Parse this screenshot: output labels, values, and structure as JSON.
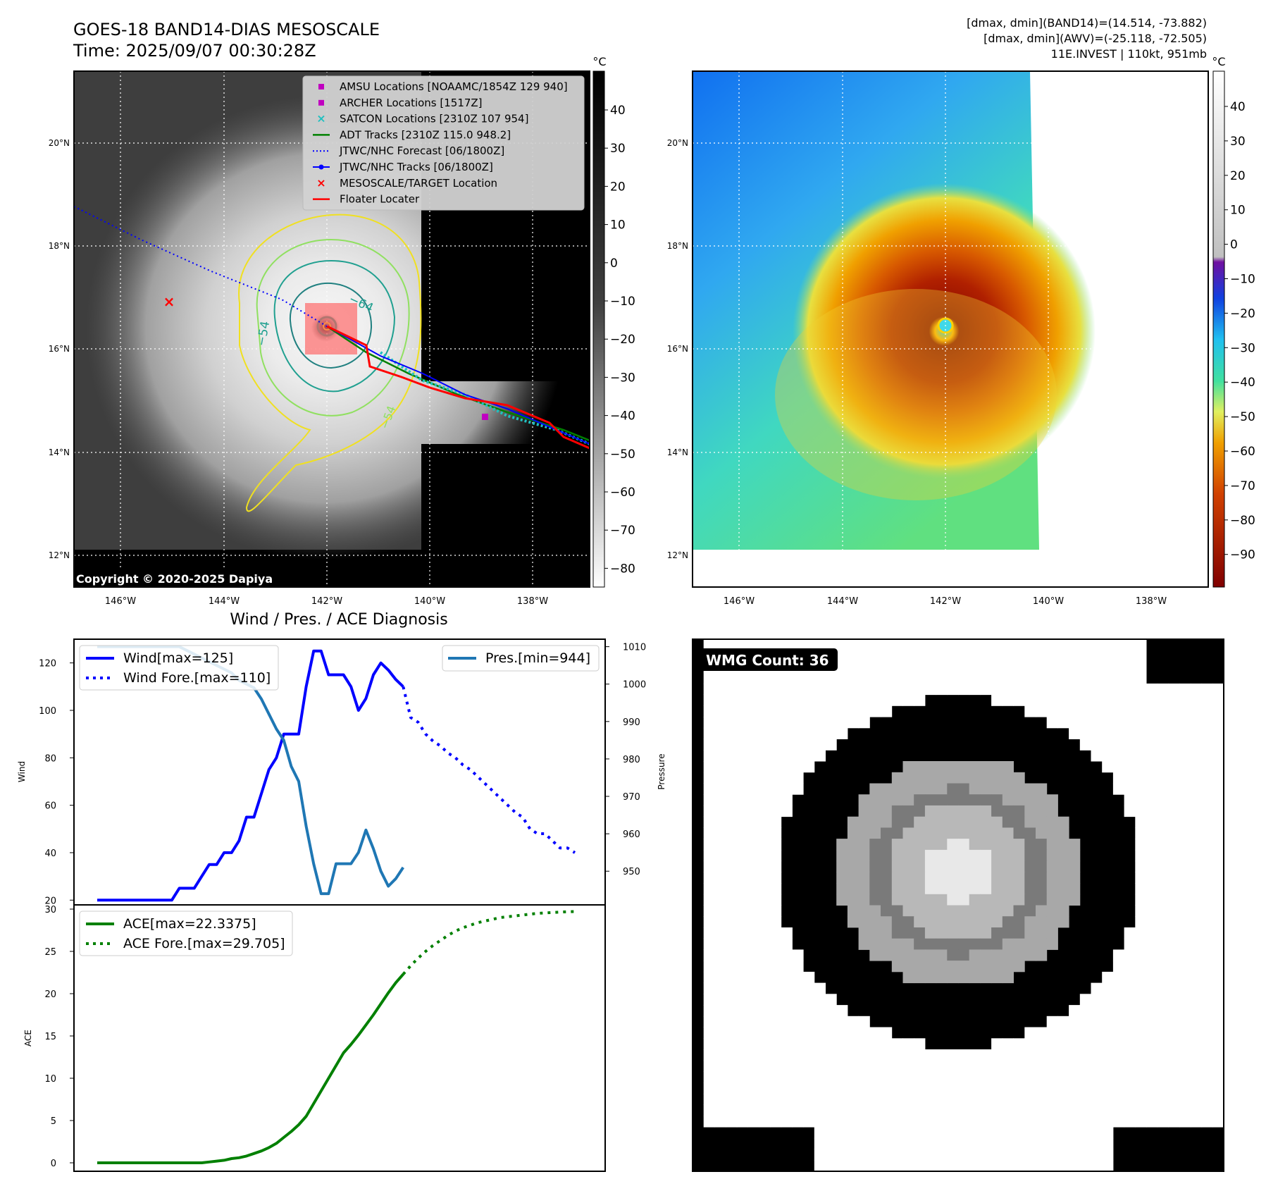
{
  "header": {
    "title_line1": "GOES-18 BAND14-DIAS MESOSCALE",
    "title_line2": "Time: 2025/09/07 00:30:28Z",
    "info_line1": "[dmax, dmin](BAND14)=(14.514, -73.882)",
    "info_line2": "[dmax, dmin](AWV)=(-25.118, -72.505)",
    "info_line3": "11E.INVEST | 110kt, 951mb"
  },
  "map_axes": {
    "lon_labels": [
      "146°W",
      "144°W",
      "142°W",
      "140°W",
      "138°W"
    ],
    "lat_labels": [
      "20°N",
      "18°N",
      "16°N",
      "14°N",
      "12°N"
    ]
  },
  "ir_panel": {
    "copyright": "Copyright © 2020-2025 Dapiya",
    "colorbar_unit": "°C",
    "colorbar_ticks": [
      "40",
      "30",
      "20",
      "10",
      "0",
      "−10",
      "−20",
      "−30",
      "−40",
      "−50",
      "−60",
      "−70",
      "−80"
    ],
    "contour_labels": [
      "−64",
      "−54",
      "−54"
    ],
    "legend": [
      {
        "label": "AMSU Locations [NOAAMC/1854Z 129 940]",
        "color": "#c000c0",
        "marker": "square"
      },
      {
        "label": "ARCHER Locations [1517Z]",
        "color": "#c000c0",
        "marker": "square"
      },
      {
        "label": "SATCON Locations [2310Z 107 954]",
        "color": "#20c0c0",
        "marker": "x"
      },
      {
        "label": "ADT Tracks [2310Z 115.0 948.2]",
        "color": "#008000",
        "marker": "line"
      },
      {
        "label": "JTWC/NHC Forecast [06/1800Z]",
        "color": "#0000ff",
        "marker": "dotted"
      },
      {
        "label": "JTWC/NHC Tracks [06/1800Z]",
        "color": "#0000ff",
        "marker": "line-dot"
      },
      {
        "label": "MESOSCALE/TARGET Location",
        "color": "#ff0000",
        "marker": "x"
      },
      {
        "label": "Floater Locater",
        "color": "#ff0000",
        "marker": "line"
      }
    ]
  },
  "awv_panel": {
    "colorbar_unit": "°C",
    "colorbar_ticks": [
      "40",
      "30",
      "20",
      "10",
      "0",
      "−10",
      "−20",
      "−30",
      "−40",
      "−50",
      "−60",
      "−70",
      "−80",
      "−90"
    ]
  },
  "wmg_panel": {
    "label": "WMG Count: 36"
  },
  "chart_data": [
    {
      "type": "line",
      "title": "Wind / Pres. / ACE Diagnosis",
      "ylabel": "Wind",
      "ylabel_right": "Pressure",
      "ylim": [
        18,
        130
      ],
      "ylim_right": [
        941,
        1012
      ],
      "yticks": [
        20,
        40,
        60,
        80,
        100,
        120
      ],
      "yticks_right": [
        950,
        960,
        970,
        980,
        990,
        1000,
        1010
      ],
      "x": [
        0,
        1,
        2,
        3,
        4,
        5,
        6,
        7,
        8,
        9,
        10,
        11,
        12,
        13,
        14,
        15,
        16,
        17,
        18,
        19,
        20,
        21,
        22,
        23,
        24,
        25,
        26,
        27,
        28,
        29,
        30,
        31,
        32,
        33,
        34,
        35,
        36,
        37,
        38,
        39,
        40,
        41,
        42,
        43,
        44,
        45,
        46,
        47,
        48,
        49,
        50,
        51,
        52,
        53,
        54,
        55,
        56,
        57,
        58,
        59,
        60,
        61,
        62,
        63,
        64
      ],
      "series": [
        {
          "name": "Wind[max=125]",
          "color": "#0000ff",
          "style": "solid",
          "x": [
            0,
            1,
            2,
            3,
            4,
            5,
            6,
            7,
            8,
            9,
            10,
            11,
            12,
            13,
            14,
            15,
            16,
            17,
            18,
            19,
            20,
            21,
            22,
            23,
            24,
            25,
            26,
            27,
            28,
            29,
            30,
            31,
            32,
            33,
            34,
            35,
            36,
            37,
            38,
            39,
            40,
            41
          ],
          "values": [
            20,
            20,
            20,
            20,
            20,
            20,
            20,
            20,
            20,
            20,
            20,
            25,
            25,
            25,
            30,
            35,
            35,
            40,
            40,
            45,
            55,
            55,
            65,
            75,
            80,
            90,
            90,
            90,
            110,
            125,
            125,
            115,
            115,
            115,
            110,
            100,
            105,
            115,
            120,
            117,
            113,
            110
          ]
        },
        {
          "name": "Wind Fore.[max=110]",
          "color": "#0000ff",
          "style": "dotted",
          "x": [
            41,
            42,
            43,
            44,
            45,
            46,
            47,
            48,
            49,
            50,
            51,
            52,
            53,
            54,
            55,
            56,
            57,
            58,
            59,
            60,
            61,
            62,
            63,
            64
          ],
          "values": [
            110,
            97,
            95,
            90,
            87,
            85,
            82,
            80,
            77,
            75,
            72,
            69,
            66,
            63,
            60,
            57,
            55,
            50,
            48,
            48,
            45,
            42,
            42,
            40
          ]
        },
        {
          "name": "Pres.[min=944]",
          "color": "#1f77b4",
          "style": "solid",
          "axis": "right",
          "x": [
            0,
            1,
            2,
            3,
            4,
            5,
            6,
            7,
            8,
            9,
            10,
            11,
            12,
            13,
            14,
            15,
            16,
            17,
            18,
            19,
            20,
            21,
            22,
            23,
            24,
            25,
            26,
            27,
            28,
            29,
            30,
            31,
            32,
            33,
            34,
            35,
            36,
            37,
            38,
            39,
            40,
            41
          ],
          "values": [
            1010,
            1010,
            1010,
            1010,
            1010,
            1010,
            1010,
            1010,
            1010,
            1010,
            1010,
            1010,
            1009,
            1008,
            1007,
            1006,
            1005,
            1004,
            1003,
            1001,
            1000,
            999,
            996,
            992,
            988,
            985,
            978,
            974,
            962,
            952,
            944,
            944,
            952,
            952,
            952,
            955,
            961,
            956,
            950,
            946,
            948,
            951
          ]
        }
      ]
    },
    {
      "type": "line",
      "ylabel": "ACE",
      "ylim": [
        -1,
        30.5
      ],
      "yticks": [
        0,
        5,
        10,
        15,
        20,
        25,
        30
      ],
      "series": [
        {
          "name": "ACE[max=22.3375]",
          "color": "#008000",
          "style": "solid",
          "x": [
            0,
            1,
            2,
            3,
            4,
            5,
            6,
            7,
            8,
            9,
            10,
            11,
            12,
            13,
            14,
            15,
            16,
            17,
            18,
            19,
            20,
            21,
            22,
            23,
            24,
            25,
            26,
            27,
            28,
            29,
            30,
            31,
            32,
            33,
            34,
            35,
            36,
            37,
            38,
            39,
            40,
            41
          ],
          "values": [
            0,
            0,
            0,
            0,
            0,
            0,
            0,
            0,
            0,
            0,
            0,
            0,
            0,
            0,
            0,
            0.1,
            0.2,
            0.3,
            0.5,
            0.6,
            0.8,
            1.1,
            1.4,
            1.8,
            2.3,
            3.0,
            3.7,
            4.5,
            5.5,
            7.0,
            8.5,
            10.0,
            11.5,
            13.0,
            14.0,
            15.1,
            16.3,
            17.5,
            18.8,
            20.1,
            21.3,
            22.3
          ]
        },
        {
          "name": "ACE Fore.[max=29.705]",
          "color": "#008000",
          "style": "dotted",
          "x": [
            41,
            42,
            43,
            44,
            45,
            46,
            47,
            48,
            49,
            50,
            51,
            52,
            53,
            54,
            55,
            56,
            57,
            58,
            59,
            60,
            61,
            62,
            63,
            64
          ],
          "values": [
            22.3,
            23.3,
            24.2,
            25.0,
            25.7,
            26.3,
            26.9,
            27.4,
            27.8,
            28.1,
            28.4,
            28.6,
            28.8,
            29.0,
            29.1,
            29.2,
            29.3,
            29.4,
            29.5,
            29.55,
            29.6,
            29.65,
            29.68,
            29.705
          ]
        }
      ]
    }
  ]
}
